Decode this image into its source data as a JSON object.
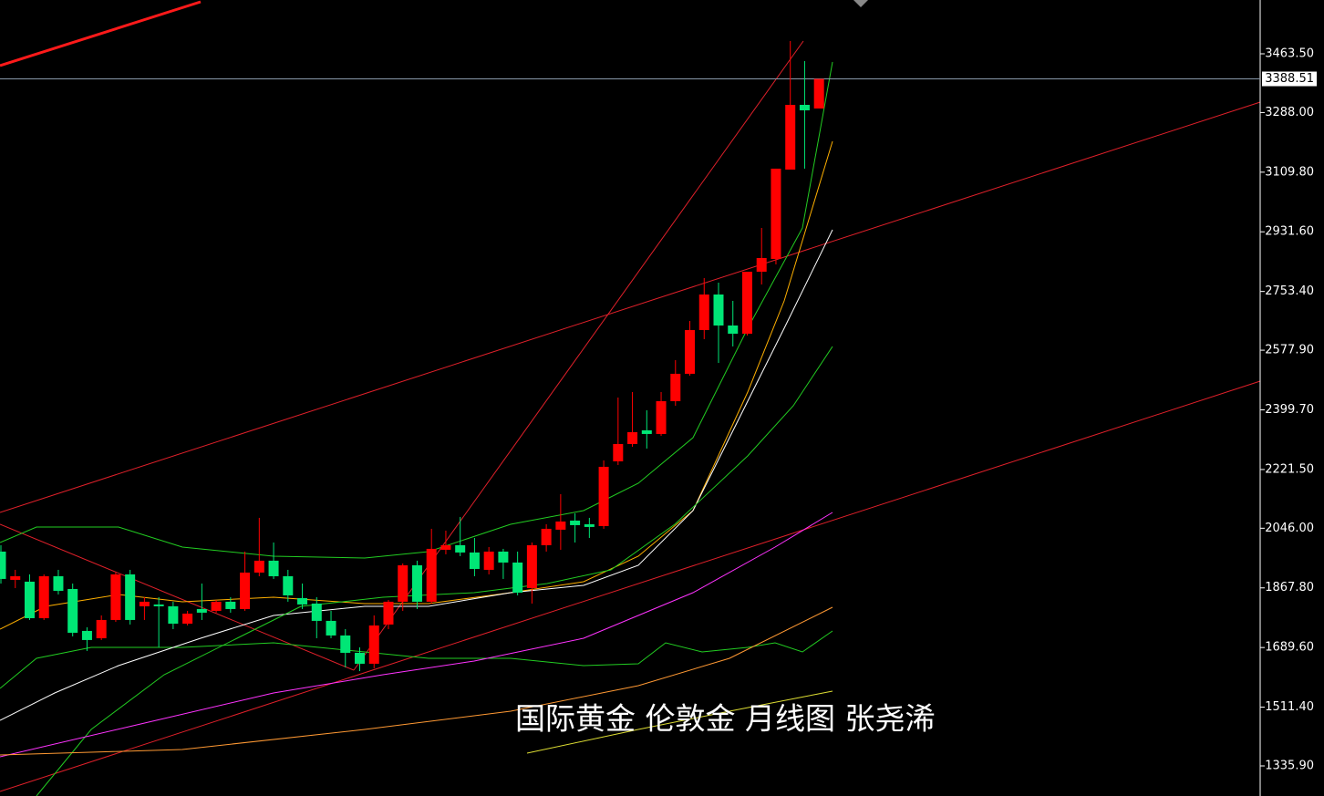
{
  "chart_data": {
    "type": "candlestick",
    "title": "国际黄金 伦敦金 月线图 张尧浠",
    "categories": [
      null,
      null,
      null,
      null,
      null,
      null,
      null,
      null,
      null,
      null,
      null,
      null,
      null,
      null,
      null,
      null,
      null,
      null,
      null,
      null,
      null,
      null,
      null,
      null,
      null,
      null,
      null,
      null,
      null,
      null,
      null,
      null,
      null,
      null,
      null,
      null,
      null,
      null,
      null,
      null,
      null,
      null,
      null,
      null,
      null,
      null,
      null,
      null,
      null,
      null,
      null,
      null,
      null,
      null,
      null,
      null,
      null,
      null
    ],
    "open": [
      1976.2,
      1891.7,
      1886.3,
      1777.3,
      1902.6,
      1864.5,
      1739.2,
      1717.4,
      1771.9,
      1908.1,
      1812.8,
      1818.2,
      1812.8,
      1760.9,
      1804.6,
      1799.1,
      1826.4,
      1804.6,
      1913.5,
      1949.0,
      1902.6,
      1837.3,
      1820.9,
      1769.2,
      1725.6,
      1673.8,
      1641.1,
      1758.3,
      1826.4,
      1935.3,
      1826.4,
      1981.6,
      1995.3,
      1973.5,
      1921.7,
      1976.2,
      1943.5,
      1867.2,
      1995.3,
      2041.6,
      2068.8,
      2057.9,
      2052.5,
      2245.9,
      2297.6,
      2338.5,
      2327.6,
      2425.6,
      2507.4,
      2638.1,
      2744.3,
      2651.7,
      2627.2,
      2812.4,
      2850.6,
      3117.5,
      3310.9,
      3300.0
    ],
    "high": [
      1995.3,
      1921.7,
      1908.1,
      1908.1,
      1921.7,
      1880.8,
      1750.1,
      1785.5,
      1913.5,
      1921.7,
      1840.0,
      1840.0,
      1826.4,
      1799.1,
      1880.8,
      1831.8,
      1840.0,
      1976.2,
      2077.0,
      2003.4,
      1921.7,
      1880.8,
      1840.0,
      1799.1,
      1744.6,
      1690.2,
      1785.5,
      1831.8,
      1940.8,
      1949.0,
      2044.3,
      2038.8,
      2079.7,
      2017.0,
      1989.8,
      1984.4,
      1976.2,
      2003.4,
      2057.9,
      2147.8,
      2090.6,
      2077.0,
      2248.6,
      2436.5,
      2452.9,
      2398.4,
      2452.9,
      2548.2,
      2665.3,
      2793.4,
      2779.8,
      2725.3,
      2812.4,
      2943.2,
      3120.3,
      3501.6,
      3441.7,
      3388.51
    ],
    "low": [
      1880.8,
      1867.2,
      1771.9,
      1771.9,
      1848.2,
      1722.8,
      1679.3,
      1712.0,
      1766.4,
      1758.3,
      1771.9,
      1690.2,
      1744.6,
      1755.5,
      1771.9,
      1793.7,
      1793.7,
      1799.1,
      1902.6,
      1894.5,
      1826.4,
      1804.6,
      1717.4,
      1717.4,
      1630.2,
      1619.3,
      1627.5,
      1744.6,
      1799.1,
      1804.6,
      1820.9,
      1968.0,
      1962.6,
      1902.6,
      1908.1,
      1894.5,
      1845.4,
      1820.9,
      1976.2,
      1981.6,
      2003.4,
      2017.0,
      2044.3,
      2235.0,
      2289.4,
      2284.0,
      2322.1,
      2412.0,
      2501.9,
      2610.9,
      2540.0,
      2589.1,
      2621.8,
      2774.3,
      2834.2,
      3117.5,
      3120.3,
      3300.0
    ],
    "close": [
      1894.5,
      1902.6,
      1777.3,
      1902.6,
      1859.0,
      1733.7,
      1712.0,
      1771.9,
      1908.1,
      1771.9,
      1826.4,
      1812.8,
      1760.9,
      1790.9,
      1793.7,
      1826.4,
      1804.6,
      1913.5,
      1949.0,
      1902.6,
      1845.4,
      1818.2,
      1769.2,
      1725.6,
      1673.8,
      1641.1,
      1755.5,
      1826.4,
      1935.3,
      1826.4,
      1984.4,
      1995.3,
      1973.5,
      1924.4,
      1976.2,
      1943.5,
      1853.6,
      1995.3,
      2044.3,
      2066.1,
      2055.2,
      2049.8,
      2229.5,
      2297.6,
      2333.0,
      2327.6,
      2425.6,
      2507.4,
      2638.1,
      2744.3,
      2651.7,
      2627.2,
      2812.4,
      2853.3,
      3120.3,
      3310.9,
      3294.6,
      3388.51
    ],
    "up_color": "#ff0000",
    "down_color": "#00e676",
    "ylim": [
      1246.0,
      3624.2
    ],
    "yticks": [
      {
        "value": 1335.9,
        "label": "1335.90"
      },
      {
        "value": 1511.4,
        "label": "1511.40"
      },
      {
        "value": 1689.6,
        "label": "1689.60"
      },
      {
        "value": 1867.8,
        "label": "1867.80"
      },
      {
        "value": 2046.0,
        "label": "2046.00"
      },
      {
        "value": 2221.5,
        "label": "2221.50"
      },
      {
        "value": 2399.7,
        "label": "2399.70"
      },
      {
        "value": 2577.9,
        "label": "2577.90"
      },
      {
        "value": 2753.4,
        "label": "2753.40"
      },
      {
        "value": 2931.6,
        "label": "2931.60"
      },
      {
        "value": 3109.8,
        "label": "3109.80"
      },
      {
        "value": 3288.0,
        "label": "3288.00"
      },
      {
        "value": 3463.5,
        "label": "3463.50"
      }
    ],
    "current_price": {
      "value": 3388.51,
      "label": "3388.51"
    }
  }
}
